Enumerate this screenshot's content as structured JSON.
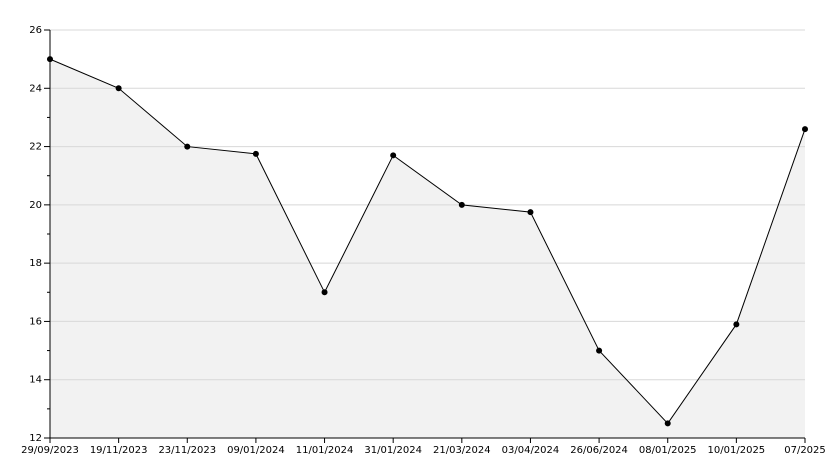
{
  "chart_data": {
    "type": "area",
    "categories": [
      "29/09/2023",
      "19/11/2023",
      "23/11/2023",
      "09/01/2024",
      "11/01/2024",
      "31/01/2024",
      "21/03/2024",
      "03/04/2024",
      "26/06/2024",
      "08/01/2025",
      "10/01/2025",
      "07/2025"
    ],
    "values": [
      25,
      24,
      22,
      21.75,
      17,
      21.7,
      20,
      19.75,
      15,
      12.5,
      15.9,
      22.6
    ],
    "color": "#000000",
    "fill": "#f2f2f2",
    "ylim": [
      12,
      26
    ],
    "yticks": [
      12,
      14,
      16,
      18,
      20,
      22,
      24,
      26
    ],
    "grid": true
  }
}
